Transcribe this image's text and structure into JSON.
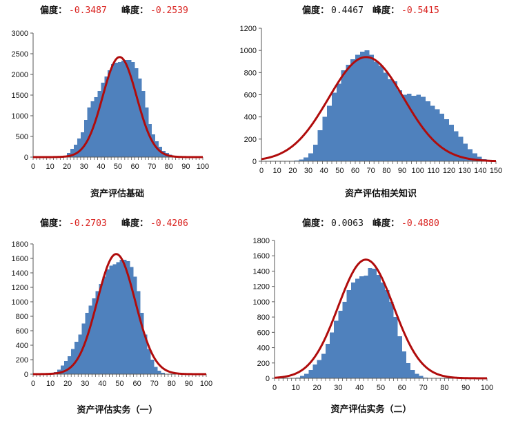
{
  "labels": {
    "skew": "偏度：",
    "kurt": "峰度："
  },
  "colors": {
    "bar": "#4f81bd",
    "curve": "#b00c0c",
    "value_neg": "#d9211e",
    "value_pos": "#111111",
    "axis": "#555555"
  },
  "chart_data": [
    {
      "type": "bar",
      "title": "资产评估基础",
      "skew": "-0.3487",
      "kurt": "-0.2539",
      "skew_negative": true,
      "kurt_negative": true,
      "xlim": [
        0,
        100
      ],
      "ylim": [
        0,
        3000
      ],
      "xticks": [
        0,
        10,
        20,
        30,
        40,
        50,
        60,
        70,
        80,
        90,
        100
      ],
      "yticks": [
        0,
        500,
        1000,
        1500,
        2000,
        2500,
        3000
      ],
      "bin_start": 0,
      "bin_width": 2,
      "values": [
        0,
        0,
        0,
        0,
        0,
        0,
        0,
        0,
        0,
        20,
        100,
        200,
        300,
        450,
        600,
        900,
        1200,
        1350,
        1450,
        1600,
        1800,
        1950,
        2100,
        2250,
        2280,
        2300,
        2330,
        2350,
        2350,
        2300,
        2150,
        1900,
        1600,
        1200,
        800,
        550,
        380,
        250,
        150,
        100,
        60,
        30,
        10,
        0,
        0,
        0,
        0,
        0,
        0,
        0
      ],
      "curve": {
        "type": "normal",
        "mean": 51,
        "sd": 10,
        "peak": 2420
      }
    },
    {
      "type": "bar",
      "title": "资产评估相关知识",
      "skew": "0.4467",
      "kurt": "-0.5415",
      "skew_negative": false,
      "kurt_negative": true,
      "xlim": [
        0,
        150
      ],
      "ylim": [
        0,
        1200
      ],
      "xticks": [
        0,
        10,
        20,
        30,
        40,
        50,
        60,
        70,
        80,
        90,
        100,
        110,
        120,
        130,
        140,
        150
      ],
      "yticks": [
        0,
        200,
        400,
        600,
        800,
        1000,
        1200
      ],
      "bin_start": 0,
      "bin_width": 3,
      "values": [
        0,
        0,
        0,
        0,
        0,
        0,
        0,
        5,
        15,
        35,
        70,
        150,
        280,
        400,
        500,
        620,
        700,
        820,
        870,
        920,
        960,
        990,
        1000,
        960,
        900,
        860,
        800,
        740,
        720,
        640,
        600,
        610,
        590,
        600,
        580,
        540,
        500,
        470,
        430,
        380,
        330,
        270,
        220,
        160,
        110,
        70,
        40,
        20,
        10,
        0
      ],
      "curve": {
        "type": "normal",
        "mean": 67,
        "sd": 24,
        "peak": 940
      }
    },
    {
      "type": "bar",
      "title": "资产评估实务（一）",
      "skew": "-0.2703",
      "kurt": "-0.4206",
      "skew_negative": true,
      "kurt_negative": true,
      "xlim": [
        0,
        100
      ],
      "ylim": [
        0,
        1800
      ],
      "xticks": [
        0,
        10,
        20,
        30,
        40,
        50,
        60,
        70,
        80,
        90,
        100
      ],
      "yticks": [
        0,
        200,
        400,
        600,
        800,
        1000,
        1200,
        1400,
        1600,
        1800
      ],
      "bin_start": 0,
      "bin_width": 2,
      "values": [
        0,
        0,
        0,
        0,
        5,
        15,
        30,
        60,
        120,
        180,
        250,
        350,
        450,
        550,
        700,
        850,
        950,
        1050,
        1150,
        1250,
        1350,
        1450,
        1500,
        1520,
        1550,
        1580,
        1580,
        1560,
        1480,
        1350,
        1150,
        850,
        550,
        350,
        200,
        100,
        50,
        20,
        5,
        0,
        0,
        0,
        0,
        0,
        0,
        0,
        0,
        0,
        0,
        0
      ],
      "curve": {
        "type": "normal",
        "mean": 48,
        "sd": 11,
        "peak": 1660
      }
    },
    {
      "type": "bar",
      "title": "资产评估实务（二）",
      "skew": "0.0063",
      "kurt": "-0.4880",
      "skew_negative": false,
      "kurt_negative": true,
      "xlim": [
        0,
        100
      ],
      "ylim": [
        0,
        1800
      ],
      "xticks": [
        0,
        10,
        20,
        30,
        40,
        50,
        60,
        70,
        80,
        90,
        100
      ],
      "yticks": [
        0,
        200,
        400,
        600,
        800,
        1000,
        1200,
        1400,
        1600,
        1800
      ],
      "bin_start": 0,
      "bin_width": 2,
      "values": [
        0,
        0,
        0,
        0,
        5,
        10,
        30,
        60,
        110,
        180,
        240,
        320,
        450,
        600,
        750,
        880,
        1000,
        1150,
        1250,
        1300,
        1330,
        1340,
        1440,
        1430,
        1350,
        1250,
        1150,
        1000,
        800,
        550,
        350,
        200,
        110,
        60,
        30,
        10,
        5,
        0,
        0,
        0,
        0,
        0,
        0,
        0,
        0,
        0,
        0,
        0,
        0,
        0
      ],
      "curve": {
        "type": "normal",
        "mean": 43,
        "sd": 13,
        "peak": 1550
      }
    }
  ]
}
